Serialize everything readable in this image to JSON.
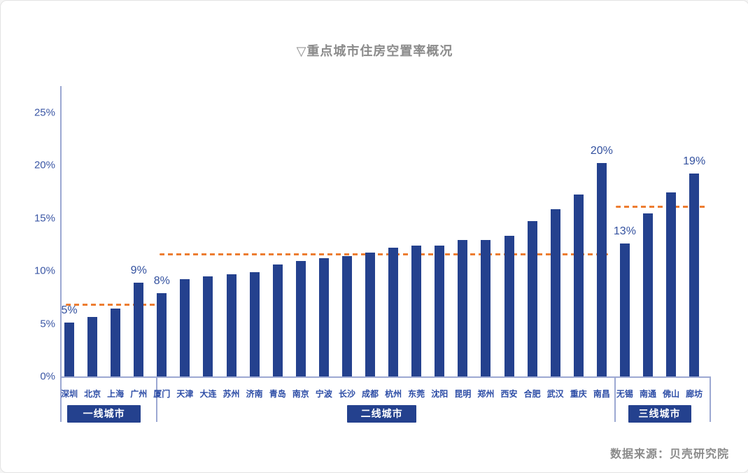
{
  "title": "▽重点城市住房空置率概况",
  "source": "数据来源：贝壳研究院",
  "colors": {
    "bar": "#24418e",
    "average_line": "#ed7d31",
    "axis": "#9ca8d2",
    "tick_label": "#3b57a5",
    "city_label": "#2d4da6",
    "title_gray": "#8b8b8b",
    "group_box_bg": "#24418e",
    "group_box_text": "#ffffff"
  },
  "chart_data": {
    "type": "bar",
    "title": "▽重点城市住房空置率概况",
    "unit": "%",
    "ylim": [
      0,
      25
    ],
    "yticks": [
      "0%",
      "5%",
      "10%",
      "15%",
      "20%",
      "25%"
    ],
    "grid": false,
    "legend": null,
    "average_line_style": "orange-dashed",
    "groups": [
      {
        "label": "一线城市",
        "average": 6.8,
        "items": [
          {
            "city": "深圳",
            "value": 5.1,
            "data_label": "5%"
          },
          {
            "city": "北京",
            "value": 5.6
          },
          {
            "city": "上海",
            "value": 6.4
          },
          {
            "city": "广州",
            "value": 8.9,
            "data_label": "9%"
          }
        ]
      },
      {
        "label": "二线城市",
        "average": 11.6,
        "items": [
          {
            "city": "厦门",
            "value": 7.9,
            "data_label": "8%"
          },
          {
            "city": "天津",
            "value": 9.2
          },
          {
            "city": "大连",
            "value": 9.5
          },
          {
            "city": "苏州",
            "value": 9.7
          },
          {
            "city": "济南",
            "value": 9.9
          },
          {
            "city": "青岛",
            "value": 10.6
          },
          {
            "city": "南京",
            "value": 10.9
          },
          {
            "city": "宁波",
            "value": 11.2
          },
          {
            "city": "长沙",
            "value": 11.4
          },
          {
            "city": "成都",
            "value": 11.7
          },
          {
            "city": "杭州",
            "value": 12.2
          },
          {
            "city": "东莞",
            "value": 12.4
          },
          {
            "city": "沈阳",
            "value": 12.4
          },
          {
            "city": "昆明",
            "value": 12.9
          },
          {
            "city": "郑州",
            "value": 12.9
          },
          {
            "city": "西安",
            "value": 13.3
          },
          {
            "city": "合肥",
            "value": 14.7
          },
          {
            "city": "武汉",
            "value": 15.8
          },
          {
            "city": "重庆",
            "value": 17.2
          },
          {
            "city": "南昌",
            "value": 20.2,
            "data_label": "20%"
          }
        ]
      },
      {
        "label": "三线城市",
        "average": 16.1,
        "items": [
          {
            "city": "无锡",
            "value": 12.6,
            "data_label": "13%"
          },
          {
            "city": "南通",
            "value": 15.4
          },
          {
            "city": "佛山",
            "value": 17.4
          },
          {
            "city": "廊坊",
            "value": 19.2,
            "data_label": "19%"
          }
        ]
      }
    ]
  }
}
